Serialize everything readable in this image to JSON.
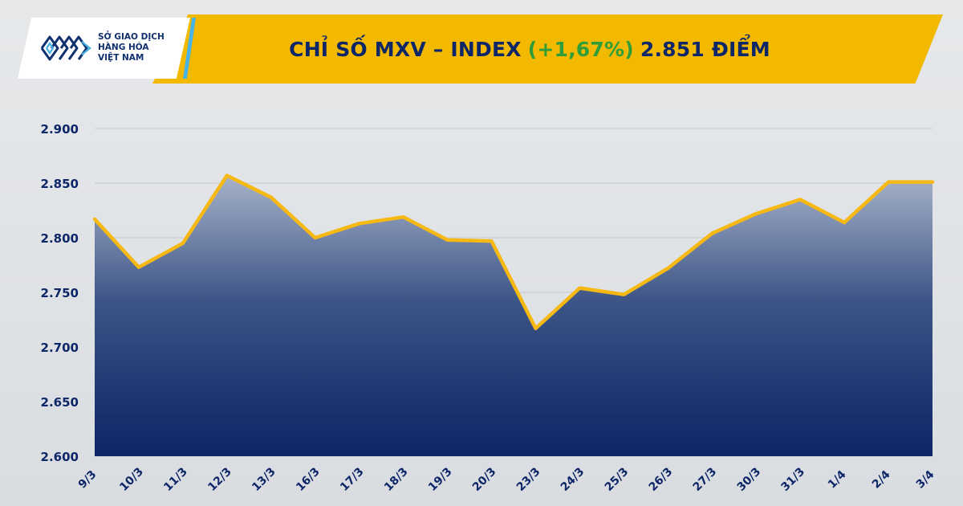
{
  "logo": {
    "lines": [
      "SỞ GIAO DỊCH",
      "HÀNG HÓA",
      "VIỆT NAM"
    ],
    "colors": {
      "navy": "#10306e",
      "accent": "#4ab3e6"
    }
  },
  "header": {
    "title_prefix": "CHỈ SỐ MXV – INDEX",
    "change": "(+1,67%)",
    "title_suffix": "2.851 ĐIỂM",
    "colors": {
      "banner": "#f3b800",
      "text": "#0d2668",
      "change": "#2e9d3a"
    }
  },
  "chart_data": {
    "type": "area",
    "categories": [
      "9/3",
      "10/3",
      "11/3",
      "12/3",
      "13/3",
      "16/3",
      "17/3",
      "18/3",
      "19/3",
      "20/3",
      "23/3",
      "24/3",
      "25/3",
      "26/3",
      "27/3",
      "30/3",
      "31/3",
      "1/4",
      "2/4",
      "3/4"
    ],
    "values": [
      2817,
      2773,
      2795,
      2857,
      2837,
      2800,
      2813,
      2819,
      2798,
      2797,
      2717,
      2754,
      2748,
      2772,
      2804,
      2822,
      2835,
      2814,
      2851,
      2851
    ],
    "ylim": [
      2600,
      2900
    ],
    "yticks": [
      2600,
      2650,
      2700,
      2750,
      2800,
      2850,
      2900
    ],
    "ytick_labels": [
      "2.600",
      "2.650",
      "2.700",
      "2.750",
      "2.800",
      "2.850",
      "2.900"
    ],
    "grid": true,
    "colors": {
      "line": "#f6b914",
      "fill_top": "#a6b2c8",
      "fill_bottom": "#0c2566",
      "grid": "#c4c8cd",
      "labels": "#0d2668"
    }
  }
}
